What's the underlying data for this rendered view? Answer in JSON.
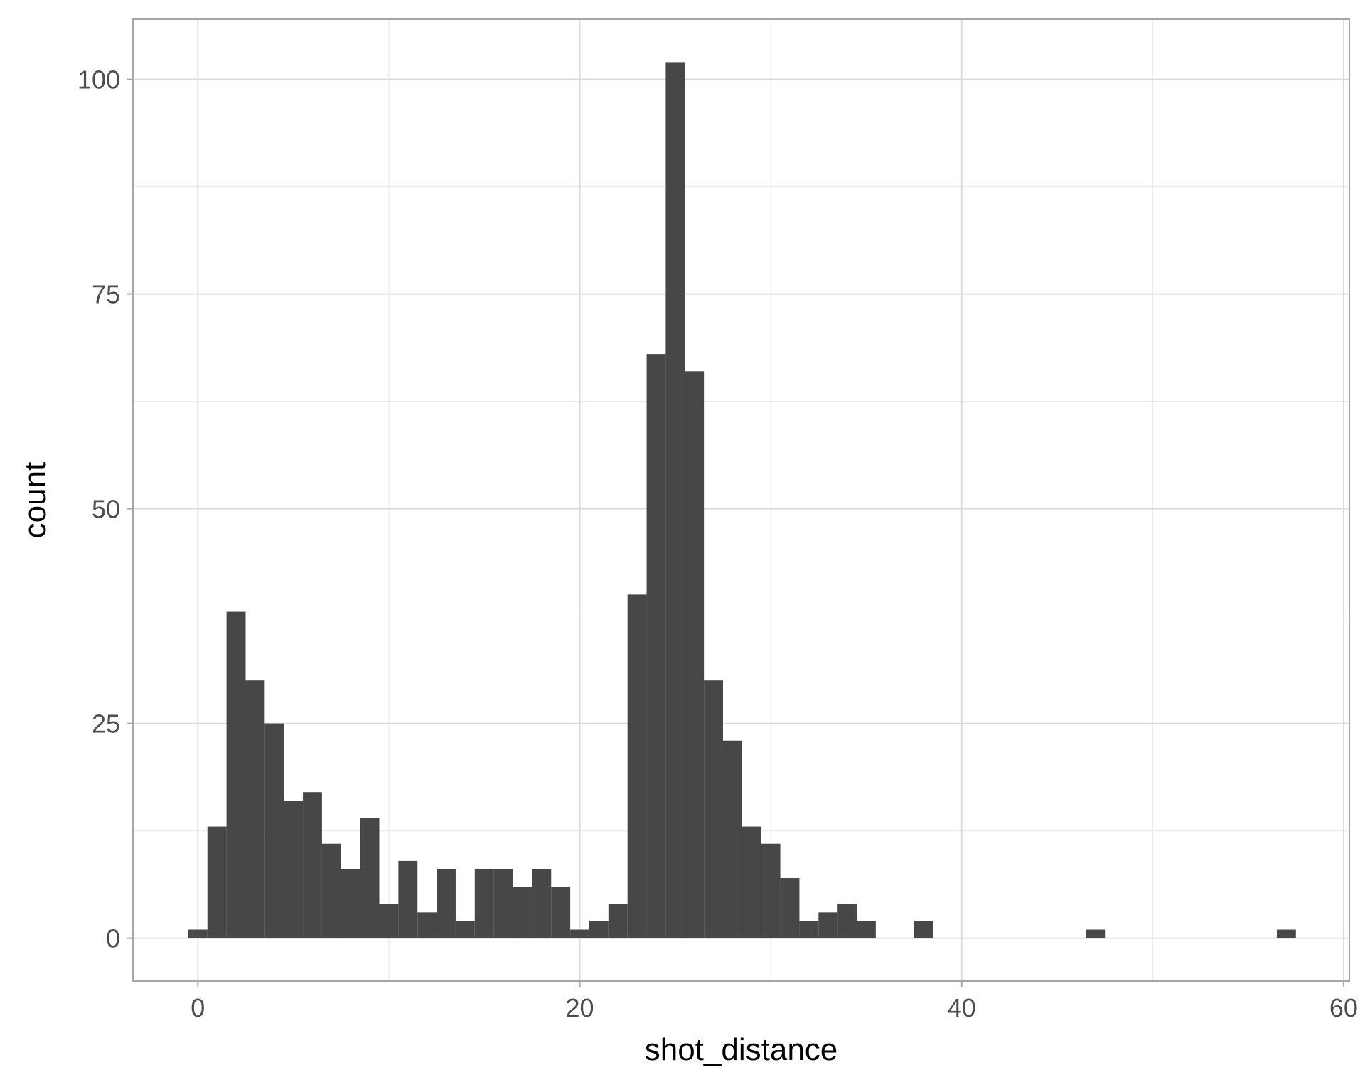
{
  "chart_data": {
    "type": "bar",
    "subtype": "histogram",
    "title": "",
    "xlabel": "shot_distance",
    "ylabel": "count",
    "xlim": [
      -3.4,
      60.3
    ],
    "ylim": [
      -5,
      107
    ],
    "x_ticks": [
      0,
      20,
      40,
      60
    ],
    "y_ticks": [
      0,
      25,
      50,
      75,
      100
    ],
    "x_tick_labels": [
      "0",
      "20",
      "40",
      "60"
    ],
    "y_tick_labels": [
      "0",
      "25",
      "50",
      "75",
      "100"
    ],
    "grid": true,
    "bar_color": "#474747",
    "bin_width": 1,
    "bins": [
      {
        "x0": -0.5,
        "count": 1
      },
      {
        "x0": 0.5,
        "count": 13
      },
      {
        "x0": 1.5,
        "count": 38
      },
      {
        "x0": 2.5,
        "count": 30
      },
      {
        "x0": 3.5,
        "count": 25
      },
      {
        "x0": 4.5,
        "count": 16
      },
      {
        "x0": 5.5,
        "count": 17
      },
      {
        "x0": 6.5,
        "count": 11
      },
      {
        "x0": 7.5,
        "count": 8
      },
      {
        "x0": 8.5,
        "count": 14
      },
      {
        "x0": 9.5,
        "count": 4
      },
      {
        "x0": 10.5,
        "count": 9
      },
      {
        "x0": 11.5,
        "count": 3
      },
      {
        "x0": 12.5,
        "count": 8
      },
      {
        "x0": 13.5,
        "count": 2
      },
      {
        "x0": 14.5,
        "count": 8
      },
      {
        "x0": 15.5,
        "count": 8
      },
      {
        "x0": 16.5,
        "count": 6
      },
      {
        "x0": 17.5,
        "count": 8
      },
      {
        "x0": 18.5,
        "count": 6
      },
      {
        "x0": 19.5,
        "count": 1
      },
      {
        "x0": 20.5,
        "count": 2
      },
      {
        "x0": 21.5,
        "count": 4
      },
      {
        "x0": 22.5,
        "count": 40
      },
      {
        "x0": 23.5,
        "count": 68
      },
      {
        "x0": 24.5,
        "count": 102
      },
      {
        "x0": 25.5,
        "count": 66
      },
      {
        "x0": 26.5,
        "count": 30
      },
      {
        "x0": 27.5,
        "count": 23
      },
      {
        "x0": 28.5,
        "count": 13
      },
      {
        "x0": 29.5,
        "count": 11
      },
      {
        "x0": 30.5,
        "count": 7
      },
      {
        "x0": 31.5,
        "count": 2
      },
      {
        "x0": 32.5,
        "count": 3
      },
      {
        "x0": 33.5,
        "count": 4
      },
      {
        "x0": 34.5,
        "count": 2
      },
      {
        "x0": 37.5,
        "count": 2
      },
      {
        "x0": 46.5,
        "count": 1
      },
      {
        "x0": 56.5,
        "count": 1
      }
    ]
  }
}
